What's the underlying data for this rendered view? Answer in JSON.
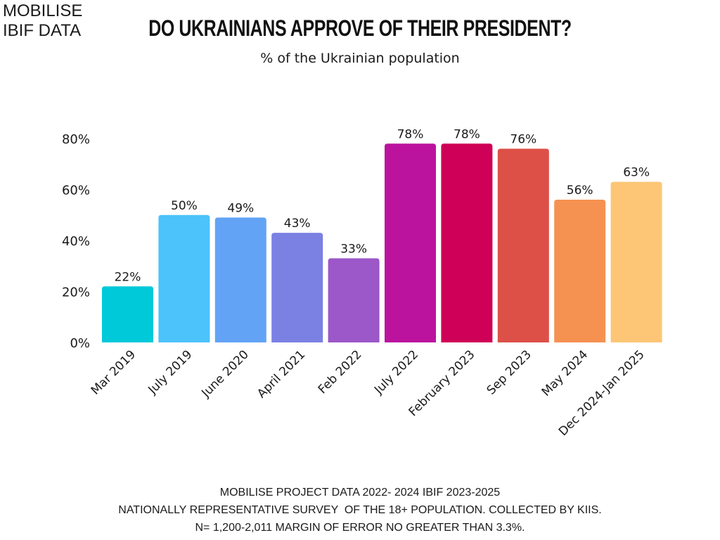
{
  "brand": {
    "line1": "MOBILISE",
    "line2": "IBIF DATA"
  },
  "chart_data": {
    "type": "bar",
    "title": "DO UKRAINIANS APPROVE OF THEIR PRESIDENT?",
    "subtitle": "% of the Ukrainian population",
    "xlabel": "",
    "ylabel": "",
    "ylim": [
      0,
      80
    ],
    "yticks": [
      0,
      20,
      40,
      60,
      80
    ],
    "ytick_labels": [
      "0%",
      "20%",
      "40%",
      "60%",
      "80%"
    ],
    "grid": false,
    "legend": "none",
    "categories": [
      "Mar 2019",
      "July 2019",
      "June 2020",
      "April 2021",
      "Feb 2022",
      "July 2022",
      "February 2023",
      "Sep 2023",
      "May 2024",
      "Dec 2024-Jan 2025"
    ],
    "values": [
      22,
      50,
      49,
      43,
      33,
      78,
      78,
      76,
      56,
      63
    ],
    "data_labels": [
      "22%",
      "50%",
      "49%",
      "43%",
      "33%",
      "78%",
      "78%",
      "76%",
      "56%",
      "63%"
    ],
    "colors": [
      "#00c9d9",
      "#4cc3fb",
      "#62a3f5",
      "#7b80e3",
      "#9c57c8",
      "#bb139e",
      "#cf0057",
      "#dc5048",
      "#f59252",
      "#fdc676"
    ]
  },
  "footer": {
    "line1": "MOBILISE PROJECT DATA 2022- 2024 IBIF 2023-2025",
    "line2": "NATIONALLY REPRESENTATIVE SURVEY  OF THE 18+ POPULATION. COLLECTED BY KIIS.",
    "line3": "N= 1,200-2,011 MARGIN OF ERROR NO GREATER THAN 3.3%."
  }
}
